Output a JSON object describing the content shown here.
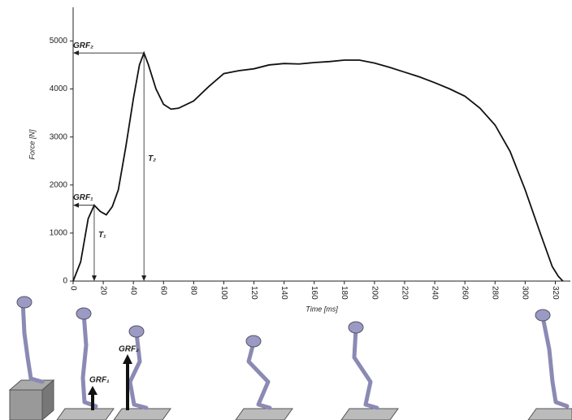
{
  "chart_data": {
    "type": "line",
    "x_label": "Time [ms]",
    "y_label": "Force [N]",
    "x": [
      0,
      5,
      10,
      14,
      18,
      22,
      26,
      30,
      35,
      40,
      44,
      47,
      50,
      55,
      60,
      65,
      70,
      80,
      90,
      100,
      110,
      120,
      130,
      140,
      150,
      160,
      170,
      180,
      190,
      200,
      210,
      220,
      230,
      240,
      250,
      260,
      270,
      280,
      290,
      300,
      310,
      318,
      322,
      325
    ],
    "values": [
      0,
      400,
      1300,
      1580,
      1450,
      1380,
      1550,
      1900,
      2800,
      3800,
      4500,
      4750,
      4500,
      4000,
      3680,
      3580,
      3600,
      3750,
      4050,
      4320,
      4380,
      4420,
      4500,
      4530,
      4520,
      4550,
      4570,
      4600,
      4600,
      4540,
      4450,
      4350,
      4250,
      4130,
      4000,
      3850,
      3600,
      3250,
      2700,
      1900,
      1000,
      300,
      100,
      0
    ],
    "color": "#111111",
    "xlim": [
      0,
      330
    ],
    "ylim": [
      0,
      5700
    ],
    "xticks": [
      0,
      20,
      40,
      60,
      80,
      100,
      120,
      140,
      160,
      180,
      200,
      220,
      240,
      260,
      280,
      300,
      320
    ],
    "yticks": [
      0,
      1000,
      2000,
      3000,
      4000,
      5000
    ],
    "markers": [
      {
        "force_label": "GRF₁",
        "time_label": "T₁",
        "x": 14,
        "y": 1580
      },
      {
        "force_label": "GRF₂",
        "time_label": "T₂",
        "x": 47,
        "y": 4750
      }
    ],
    "figure_labels": [
      "GRF₁",
      "GRF₂"
    ]
  }
}
